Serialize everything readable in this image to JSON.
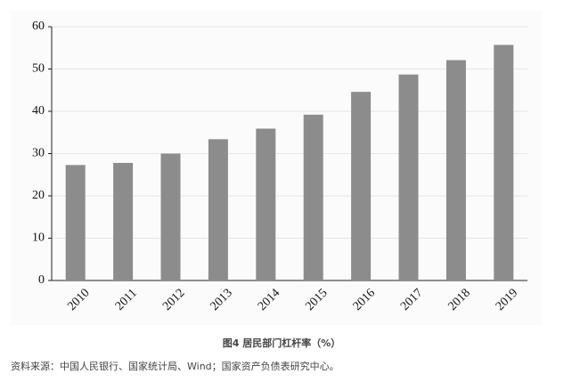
{
  "chart_data": {
    "type": "bar",
    "title": "图4  居民部门杠杆率（%）",
    "source": "资料来源：中国人民银行、国家统计局、Wind；国家资产负债表研究中心。",
    "categories": [
      "2010",
      "2011",
      "2012",
      "2013",
      "2014",
      "2015",
      "2016",
      "2017",
      "2018",
      "2019"
    ],
    "values": [
      27.3,
      27.8,
      30.0,
      33.4,
      35.9,
      39.2,
      44.6,
      48.7,
      52.1,
      55.7
    ],
    "color": "#8c8c8c",
    "ylim": [
      0,
      60
    ],
    "yticks": [
      0,
      10,
      20,
      30,
      40,
      50,
      60
    ],
    "grid": true
  }
}
